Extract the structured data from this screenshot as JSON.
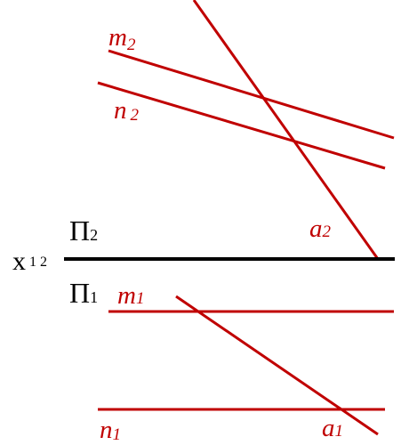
{
  "colors": {
    "lines": "#c00000",
    "axis": "#000000",
    "background": "#ffffff"
  },
  "axis": {
    "letter": "x",
    "subscript": "1 2"
  },
  "planes": {
    "upper": {
      "letter": "Π",
      "subscript": "2"
    },
    "lower": {
      "letter": "Π",
      "subscript": "1"
    }
  },
  "lines": {
    "m2": {
      "letter": "m",
      "subscript": "2"
    },
    "n2": {
      "letter": "n",
      "subscript": "2"
    },
    "a2": {
      "letter": "a",
      "subscript": "2"
    },
    "m1": {
      "letter": "m",
      "subscript": "1"
    },
    "n1": {
      "letter": "n",
      "subscript": "1"
    },
    "a1": {
      "letter": "a",
      "subscript": "1"
    }
  }
}
